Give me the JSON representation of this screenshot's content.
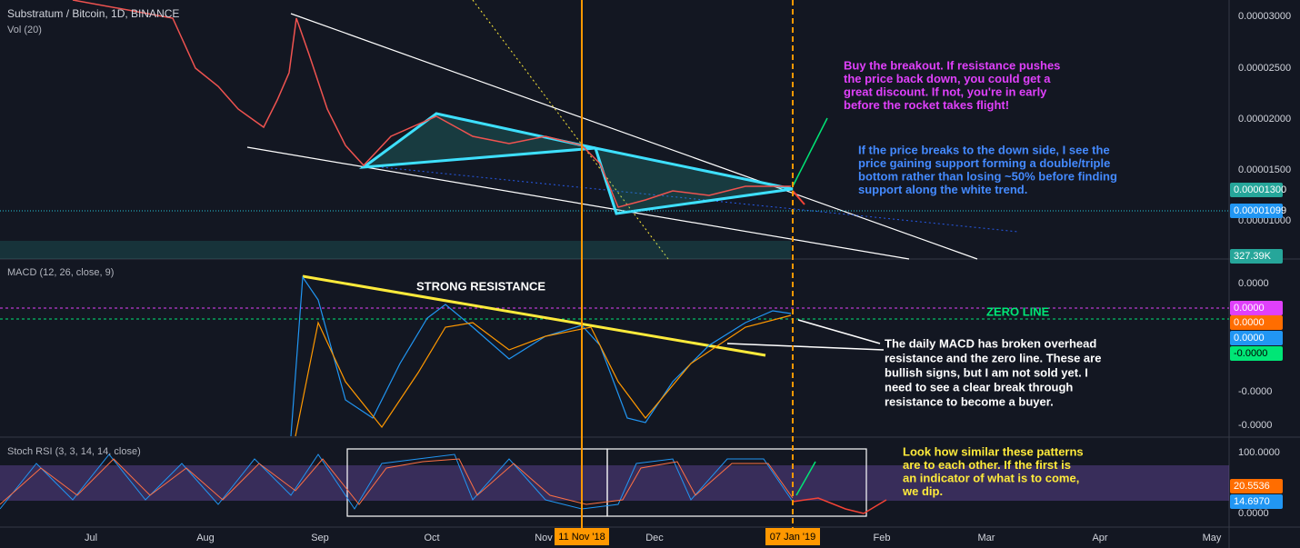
{
  "header": {
    "title": "Substratum / Bitcoin, 1D, BINANCE",
    "volume": "Vol (20)"
  },
  "price_axis": [
    "0.00003000",
    "0.00002500",
    "0.00002000",
    "0.00001500",
    "0.00001000"
  ],
  "price_badges": [
    "0.00001300",
    "0.00001099",
    "327.39K"
  ],
  "macd": {
    "title": "MACD (12, 26, close, 9)",
    "axis": [
      "0.0000",
      "-0.0000",
      "-0.0000"
    ],
    "badges": [
      "0.0000",
      "0.0000",
      "0.0000",
      "-0.0000"
    ]
  },
  "stoch": {
    "title": "Stoch RSI (3, 3, 14, 14, close)",
    "axis": [
      "100.0000",
      "0.0000"
    ],
    "badges": [
      "20.5536",
      "14.6970"
    ]
  },
  "time_axis": [
    "Jul",
    "Aug",
    "Sep",
    "Oct",
    "Nov",
    "Dec",
    "Feb",
    "Mar",
    "Apr",
    "May"
  ],
  "time_badges": [
    "11 Nov '18",
    "07 Jan '19"
  ],
  "annotations": {
    "buy": [
      "Buy the breakout. If resistance pushes",
      "the price back down, you could get a",
      "great discount. If not, you're in early",
      "before the rocket takes flight!"
    ],
    "down": [
      "If the price breaks to the down side, I see the",
      "price gaining support forming a double/triple",
      "bottom rather than losing ~50% before finding",
      "support along the white trend."
    ],
    "resistance": "STRONG RESISTANCE",
    "zero": "ZERO LINE",
    "macd": [
      "The daily MACD has broken overhead",
      "resistance and the zero line. These are",
      "bullish signs, but I am not sold yet. I",
      "need to see a clear break through",
      "resistance to become a buyer."
    ],
    "stoch": [
      "Look how similar these patterns",
      "are to each other. If the first is",
      "an indicator of what is to come,",
      "we dip."
    ]
  }
}
